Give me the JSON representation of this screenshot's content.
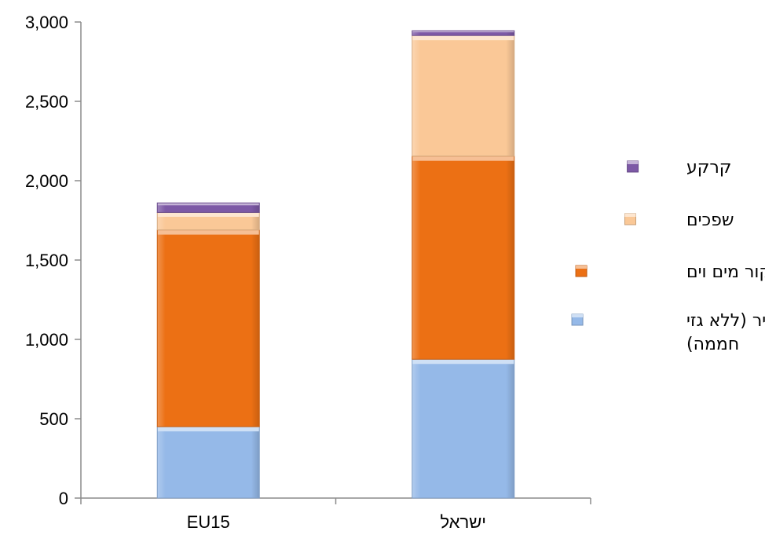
{
  "chart_data": {
    "type": "bar",
    "stacked": true,
    "categories": [
      "EU15",
      "ישראל"
    ],
    "series": [
      {
        "name": "אוויר (ללא גזי חממה)",
        "legend_lines": [
          "אוויר (ללא גזי",
          "חממה)"
        ],
        "color": "#95b9e8",
        "values": [
          450,
          875
        ]
      },
      {
        "name": "מקור מים וים",
        "color": "#ec7014",
        "values": [
          1240,
          1280
        ]
      },
      {
        "name": "שפכים",
        "color": "#fac897",
        "values": [
          110,
          760
        ]
      },
      {
        "name": "קרקע",
        "color": "#7d59a6",
        "values": [
          60,
          30
        ]
      }
    ],
    "yticks": [
      0,
      500,
      1000,
      1500,
      2000,
      2500,
      3000
    ],
    "ytick_labels": [
      "0",
      "500",
      "1,000",
      "1,500",
      "2,000",
      "2,500",
      "3,000"
    ],
    "ylim": [
      0,
      3000
    ],
    "legend_position": "right",
    "grid": false
  }
}
